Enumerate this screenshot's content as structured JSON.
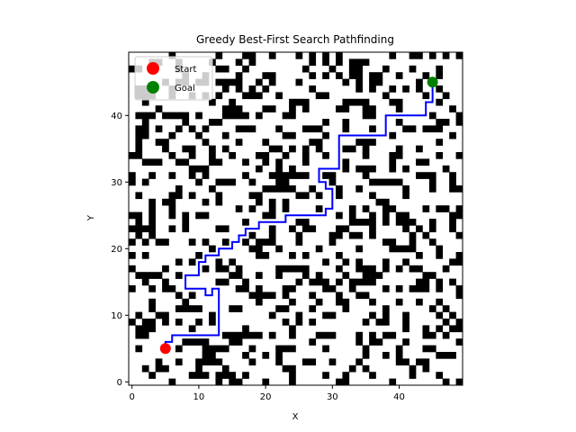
{
  "chart_data": {
    "type": "heatmap",
    "title": "Greedy Best-First Search Pathfinding",
    "xlabel": "X",
    "ylabel": "Y",
    "xlim": [
      -0.5,
      49.5
    ],
    "ylim": [
      -0.5,
      49.5
    ],
    "xticks": [
      0,
      10,
      20,
      30,
      40
    ],
    "yticks": [
      0,
      10,
      20,
      30,
      40
    ],
    "grid_size": 50,
    "obstacle_density": 0.3,
    "obstacle_color": "#000000",
    "free_color": "#ffffff",
    "legend_position": "upper-left",
    "series": [
      {
        "name": "Start",
        "type": "marker",
        "color": "#ff0000",
        "points": [
          [
            5,
            5
          ]
        ]
      },
      {
        "name": "Goal",
        "type": "marker",
        "color": "#008000",
        "points": [
          [
            45,
            45
          ]
        ]
      },
      {
        "type": "path",
        "color": "#0000ff",
        "points": [
          [
            5,
            5
          ],
          [
            5,
            6
          ],
          [
            6,
            6
          ],
          [
            6,
            7
          ],
          [
            13,
            7
          ],
          [
            13,
            14
          ],
          [
            12,
            14
          ],
          [
            12,
            13
          ],
          [
            11,
            13
          ],
          [
            11,
            14
          ],
          [
            8,
            14
          ],
          [
            8,
            16
          ],
          [
            10,
            16
          ],
          [
            10,
            18
          ],
          [
            11,
            18
          ],
          [
            11,
            19
          ],
          [
            13,
            19
          ],
          [
            13,
            20
          ],
          [
            15,
            20
          ],
          [
            15,
            21
          ],
          [
            16,
            21
          ],
          [
            16,
            22
          ],
          [
            17,
            22
          ],
          [
            17,
            23
          ],
          [
            19,
            23
          ],
          [
            19,
            24
          ],
          [
            23,
            24
          ],
          [
            23,
            25
          ],
          [
            29,
            25
          ],
          [
            29,
            26
          ],
          [
            30,
            26
          ],
          [
            30,
            29
          ],
          [
            29,
            29
          ],
          [
            29,
            30
          ],
          [
            28,
            30
          ],
          [
            28,
            32
          ],
          [
            31,
            32
          ],
          [
            31,
            37
          ],
          [
            38,
            37
          ],
          [
            38,
            40
          ],
          [
            44,
            40
          ],
          [
            44,
            42
          ],
          [
            45,
            42
          ],
          [
            45,
            45
          ]
        ]
      }
    ]
  }
}
